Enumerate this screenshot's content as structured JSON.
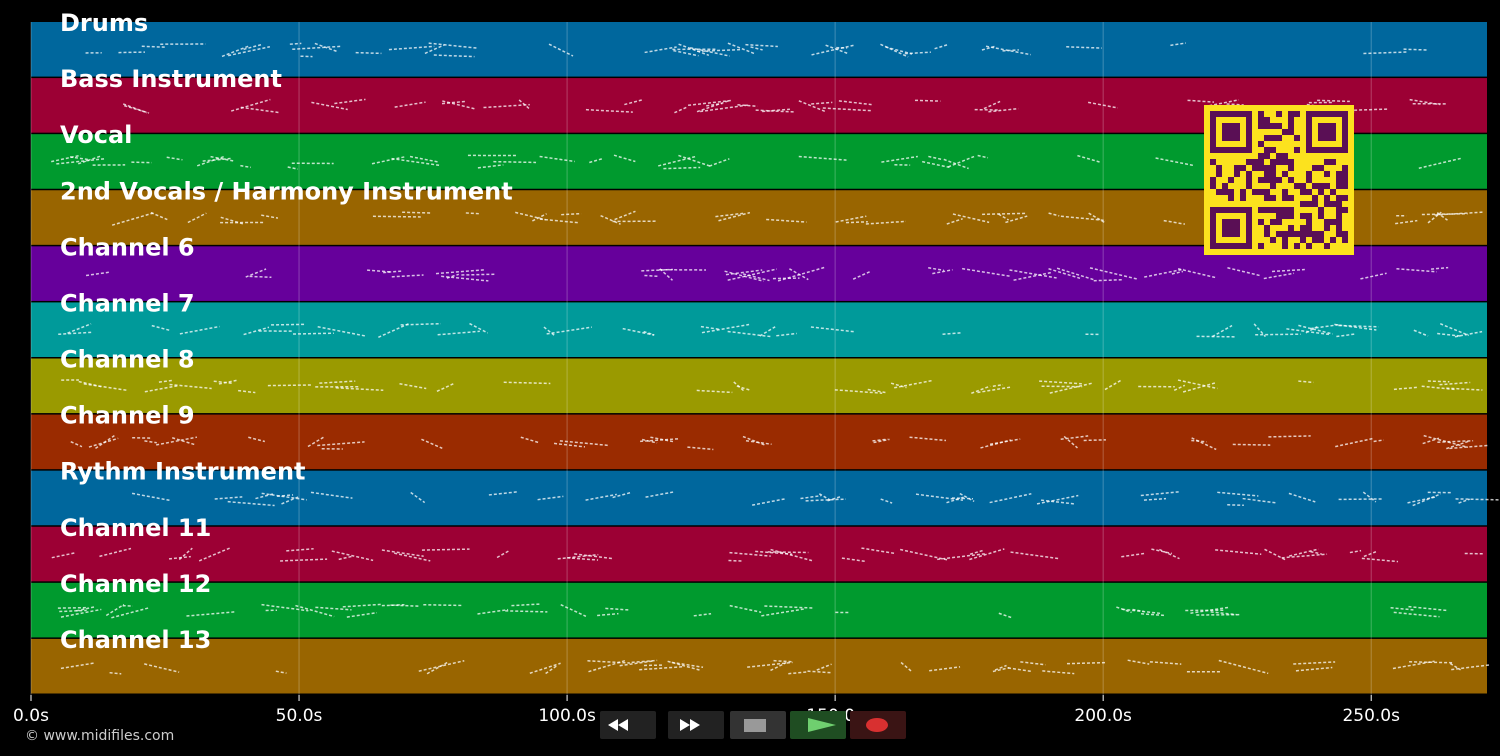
{
  "tracks": [
    {
      "name": "Drums",
      "color": "#00679d"
    },
    {
      "name": "Bass Instrument",
      "color": "#9c0034"
    },
    {
      "name": "Vocal",
      "color": "#009a2e"
    },
    {
      "name": "2nd Vocals / Harmony Instrument",
      "color": "#996500"
    },
    {
      "name": "Channel 6",
      "color": "#66009b"
    },
    {
      "name": "Channel 7",
      "color": "#009a9a"
    },
    {
      "name": "Channel 8",
      "color": "#9a9a00"
    },
    {
      "name": "Channel 9",
      "color": "#9a2b00"
    },
    {
      "name": "Rythm Instrument",
      "color": "#00679d"
    },
    {
      "name": "Channel 11",
      "color": "#9c0034"
    },
    {
      "name": "Channel 12",
      "color": "#009a2e"
    },
    {
      "name": "Channel 13",
      "color": "#996500"
    }
  ],
  "timeline": {
    "xlim": [
      0,
      271.6
    ],
    "ticks": [
      {
        "value": 0,
        "label": "0.0s"
      },
      {
        "value": 50,
        "label": "50.0s"
      },
      {
        "value": 100,
        "label": "100.0s"
      },
      {
        "value": 150,
        "label": "150.0s"
      },
      {
        "value": 200,
        "label": "200.0s"
      },
      {
        "value": 250,
        "label": "250.0s"
      }
    ]
  },
  "footer": "© www.midifiles.com"
}
